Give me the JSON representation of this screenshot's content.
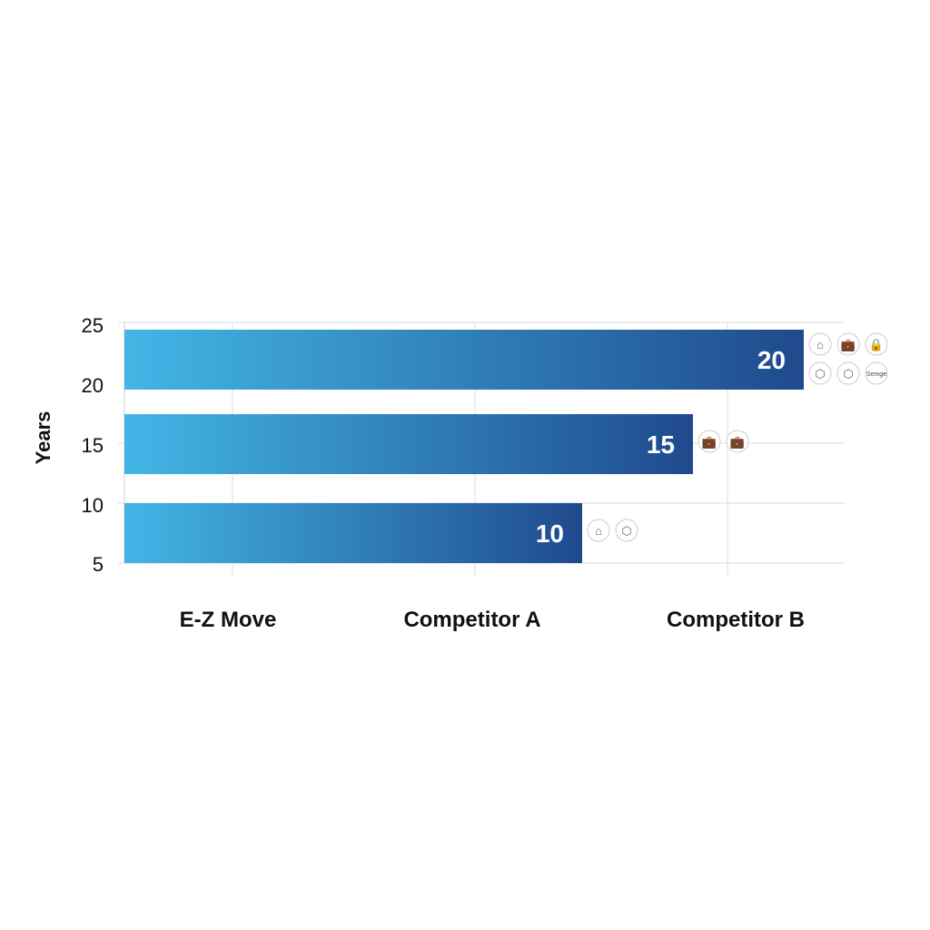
{
  "chart_data": {
    "type": "bar",
    "orientation": "horizontal",
    "ylabel": "Years",
    "yticks": [
      25,
      20,
      15,
      10,
      5
    ],
    "categories": [
      "E-Z Move",
      "Competitor A",
      "Competitor B"
    ],
    "values": [
      20,
      15,
      10
    ],
    "data_labels": [
      "20",
      "15",
      "10"
    ],
    "bar_gradient": [
      "#42b6e6",
      "#1f4a8d"
    ],
    "grid": true,
    "bar_icons": [
      [
        "home-icon",
        "briefcase-icon",
        "lock-icon",
        "box-icon",
        "box-icon",
        "Semge"
      ],
      [
        "briefcase-filled-icon",
        "briefcase-icon"
      ],
      [
        "home-filled-icon",
        "box-icon"
      ]
    ]
  }
}
